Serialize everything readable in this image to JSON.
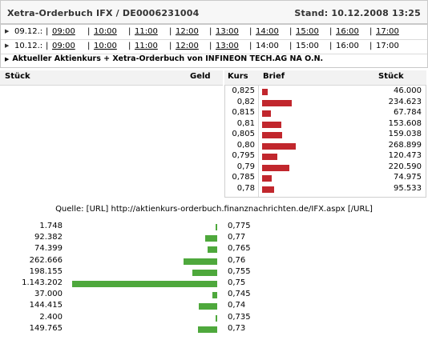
{
  "header": {
    "title": "Xetra-Orderbuch IFX / DE0006231004",
    "stand": "Stand: 10.12.2008 13:25"
  },
  "days": [
    {
      "date": "09.12.:",
      "times": [
        {
          "label": "09:00",
          "link": true
        },
        {
          "label": "10:00",
          "link": true
        },
        {
          "label": "11:00",
          "link": true
        },
        {
          "label": "12:00",
          "link": true
        },
        {
          "label": "13:00",
          "link": true
        },
        {
          "label": "14:00",
          "link": true
        },
        {
          "label": "15:00",
          "link": true
        },
        {
          "label": "16:00",
          "link": true
        },
        {
          "label": "17:00",
          "link": true
        }
      ]
    },
    {
      "date": "10.12.:",
      "times": [
        {
          "label": "09:00",
          "link": true
        },
        {
          "label": "10:00",
          "link": true
        },
        {
          "label": "11:00",
          "link": true
        },
        {
          "label": "12:00",
          "link": true
        },
        {
          "label": "13:00",
          "link": true
        },
        {
          "label": "14:00",
          "link": false
        },
        {
          "label": "15:00",
          "link": false
        },
        {
          "label": "16:00",
          "link": false
        },
        {
          "label": "17:00",
          "link": false
        }
      ]
    }
  ],
  "aktuell": "Aktueller Aktienkurs + Xetra-Orderbuch von INFINEON TECH.AG NA O.N.",
  "columns": {
    "stueck_left": "Stück",
    "geld": "Geld",
    "kurs": "Kurs",
    "brief": "Brief",
    "stueck_right": "Stück"
  },
  "asks": [
    {
      "price": "0,825",
      "qty": "46.000",
      "value": 46000
    },
    {
      "price": "0,82",
      "qty": "234.623",
      "value": 234623
    },
    {
      "price": "0,815",
      "qty": "67.784",
      "value": 67784
    },
    {
      "price": "0,81",
      "qty": "153.608",
      "value": 153608
    },
    {
      "price": "0,805",
      "qty": "159.038",
      "value": 159038
    },
    {
      "price": "0,80",
      "qty": "268.899",
      "value": 268899
    },
    {
      "price": "0,795",
      "qty": "120.473",
      "value": 120473
    },
    {
      "price": "0,79",
      "qty": "220.590",
      "value": 220590
    },
    {
      "price": "0,785",
      "qty": "74.975",
      "value": 74975
    },
    {
      "price": "0,78",
      "qty": "95.533",
      "value": 95533
    }
  ],
  "quelle": "Quelle: [URL] http://aktienkurs-orderbuch.finanznachrichten.de/IFX.aspx [/URL]",
  "bids": [
    {
      "price": "0,775",
      "qty": "1.748",
      "value": 1748
    },
    {
      "price": "0,77",
      "qty": "92.382",
      "value": 92382
    },
    {
      "price": "0,765",
      "qty": "74.399",
      "value": 74399
    },
    {
      "price": "0,76",
      "qty": "262.666",
      "value": 262666
    },
    {
      "price": "0,755",
      "qty": "198.155",
      "value": 198155
    },
    {
      "price": "0,75",
      "qty": "1.143.202",
      "value": 1143202
    },
    {
      "price": "0,745",
      "qty": "37.000",
      "value": 37000
    },
    {
      "price": "0,74",
      "qty": "144.415",
      "value": 144415
    },
    {
      "price": "0,735",
      "qty": "2.400",
      "value": 2400
    },
    {
      "price": "0,73",
      "qty": "149.765",
      "value": 149765
    }
  ],
  "colors": {
    "ask_bar": "#c1272d",
    "bid_bar": "#4ea83c"
  }
}
